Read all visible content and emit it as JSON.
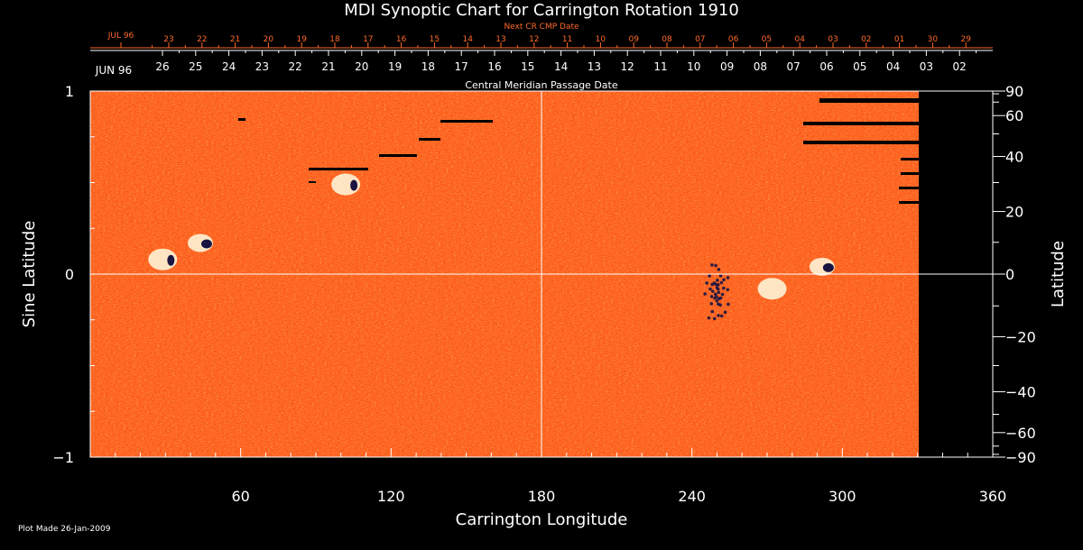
{
  "chart_data": {
    "type": "heatmap",
    "title": "MDI Synoptic Chart for Carrington Rotation 1910",
    "xlabel": "Carrington Longitude",
    "ylabel_left": "Sine Latitude",
    "ylabel_right": "Latitude",
    "xlim": [
      0,
      360
    ],
    "ylim_sine": [
      -1,
      1
    ],
    "x_ticks": [
      60,
      120,
      180,
      240,
      300,
      360
    ],
    "y_ticks_sine": [
      {
        "value": 1,
        "label": "1"
      },
      {
        "value": 0,
        "label": "0"
      },
      {
        "value": -1,
        "label": "−1"
      }
    ],
    "latitude_ticks": [
      {
        "deg": 90,
        "label": "90"
      },
      {
        "deg": 60,
        "label": "60"
      },
      {
        "deg": 40,
        "label": "40"
      },
      {
        "deg": 20,
        "label": "20"
      },
      {
        "deg": 0,
        "label": "0"
      },
      {
        "deg": -20,
        "label": "−20"
      },
      {
        "deg": -40,
        "label": "−40"
      },
      {
        "deg": -60,
        "label": "−60"
      },
      {
        "deg": -90,
        "label": "−90"
      }
    ],
    "latitude_minor_ticks": [
      80,
      70,
      50,
      30,
      10,
      -10,
      -30,
      -50,
      -70,
      -80
    ],
    "top_axis_1": {
      "month_label": "JUN 96",
      "day_labels": [
        "26",
        "25",
        "24",
        "23",
        "22",
        "21",
        "20",
        "19",
        "18",
        "17",
        "16",
        "15",
        "14",
        "13",
        "12",
        "11",
        "10",
        "09",
        "08",
        "07",
        "06",
        "05",
        "04",
        "03",
        "02"
      ],
      "caption": "Central Meridian Passage Date"
    },
    "top_axis_2": {
      "caption": "Next CR CMP Date",
      "month_label": "JUL 96",
      "day_labels": [
        "23",
        "22",
        "21",
        "20",
        "19",
        "18",
        "17",
        "16",
        "15",
        "14",
        "13",
        "12",
        "11",
        "10",
        "09",
        "08",
        "07",
        "06",
        "05",
        "04",
        "03",
        "02",
        "01",
        "30",
        "29"
      ]
    },
    "data_coverage_end_longitude": 330,
    "magnetic_features": [
      {
        "lon": 45,
        "sinlat": 0.17,
        "polarity": "mixed",
        "strength": "strong"
      },
      {
        "lon": 30,
        "sinlat": 0.08,
        "polarity": "mixed",
        "strength": "moderate"
      },
      {
        "lon": 103,
        "sinlat": 0.49,
        "polarity": "mixed",
        "strength": "moderate"
      },
      {
        "lon": 250,
        "sinlat": -0.1,
        "polarity": "negative",
        "strength": "moderate"
      },
      {
        "lon": 272,
        "sinlat": -0.08,
        "polarity": "positive",
        "strength": "moderate"
      },
      {
        "lon": 293,
        "sinlat": 0.04,
        "polarity": "mixed",
        "strength": "strong"
      }
    ],
    "footnote": "Plot Made 26-Jan-2009",
    "colors": {
      "background": "#000000",
      "field_base": "#ff5a1a",
      "positive_polarity": "#fffbe0",
      "negative_polarity": "#1a1440",
      "axes": "#ffffff",
      "secondary_axis": "#ff6a2a"
    }
  }
}
